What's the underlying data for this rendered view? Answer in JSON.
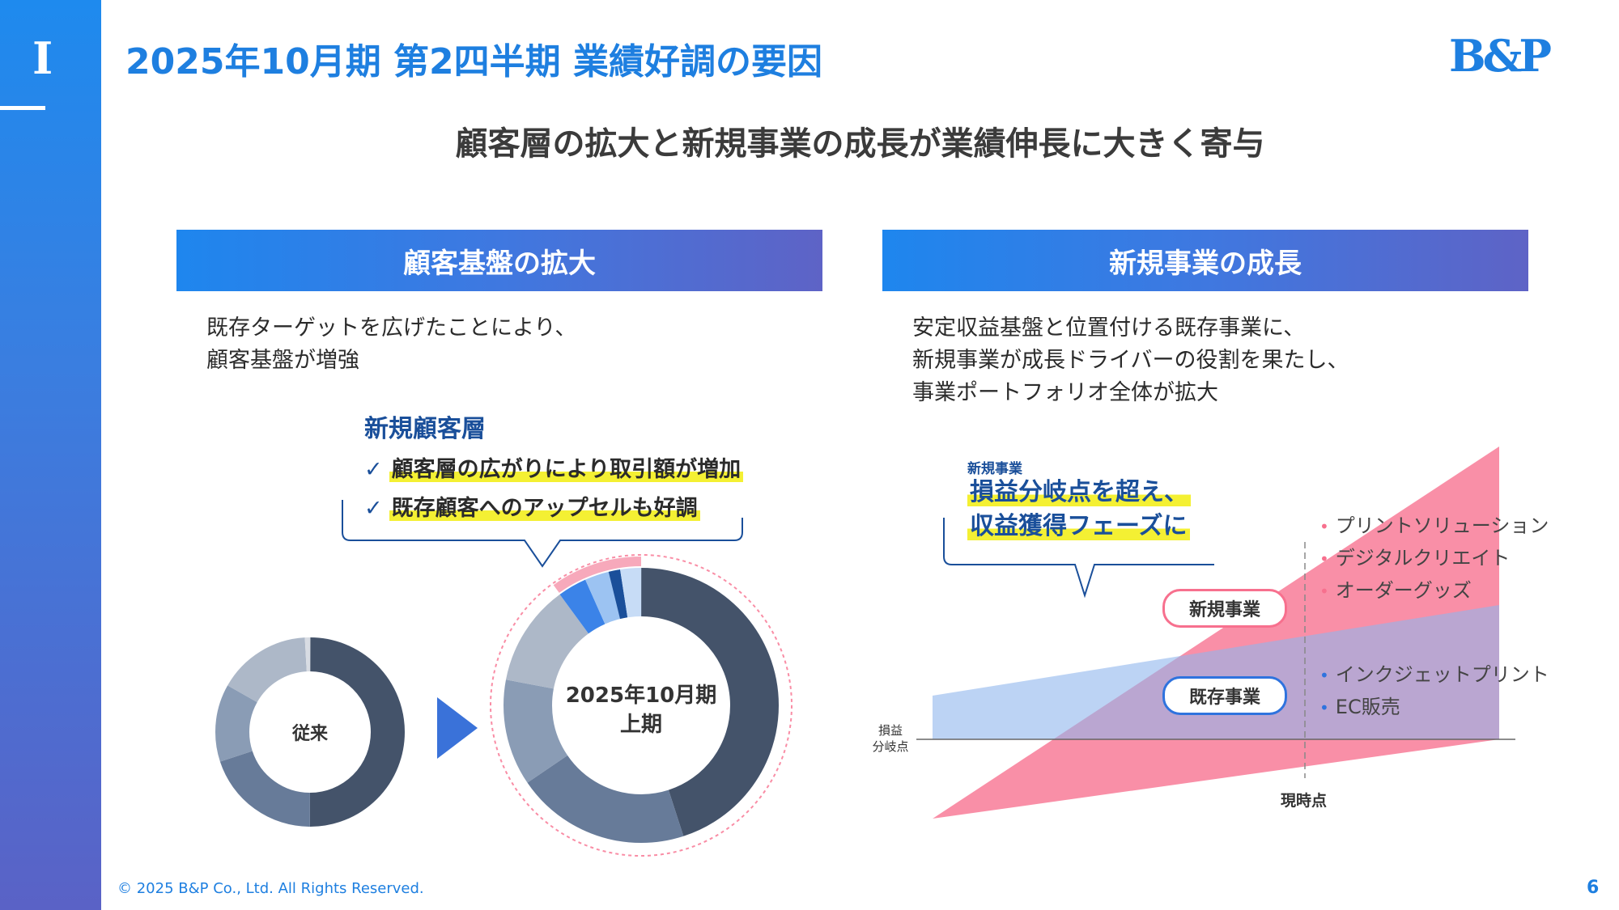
{
  "sidebar": {
    "numeral": "I"
  },
  "header": {
    "title": "2025年10月期 第2四半期 業績好調の要因",
    "logo_text": "B&P"
  },
  "headline": "顧客層の拡大と新規事業の成長が業績伸長に大きく寄与",
  "left_panel": {
    "heading": "顧客基盤の拡大",
    "desc_lines": [
      "既存ターゲットを広げたことにより、",
      "顧客基盤が増強"
    ],
    "new_segment_title": "新規顧客層",
    "checks": [
      "顧客層の広がりにより取引額が増加",
      "既存顧客へのアップセルも好調"
    ],
    "donut_before_label": "従来",
    "donut_after_label_line1": "2025年10月期",
    "donut_after_label_line2": "上期"
  },
  "right_panel": {
    "heading": "新規事業の成長",
    "desc_lines": [
      "安定収益基盤と位置付ける既存事業に、",
      "新規事業が成長ドライバーの役割を果たし、",
      "事業ポートフォリオ全体が拡大"
    ],
    "callout_small": "新規事業",
    "callout_line1": "損益分岐点を超え、",
    "callout_line2": "収益獲得フェーズに",
    "new_business_label": "新規事業",
    "existing_business_label": "既存事業",
    "new_items": [
      "プリントソリューション",
      "デジタルクリエイト",
      "オーダーグッズ"
    ],
    "existing_items": [
      "インクジェットプリント",
      "EC販売"
    ],
    "breakeven_line1": "損益",
    "breakeven_line2": "分岐点",
    "now_label": "現時点"
  },
  "colors": {
    "accent": "#1e7fe0",
    "dark_navy": "#1a4f9a",
    "new_pink": "#f7708e",
    "existing_blue": "#3b83e8",
    "highlight_yellow": "#f4f033"
  },
  "footer": {
    "copyright": "© 2025 B&P Co., Ltd. All Rights Reserved.",
    "page_number": "6"
  }
}
